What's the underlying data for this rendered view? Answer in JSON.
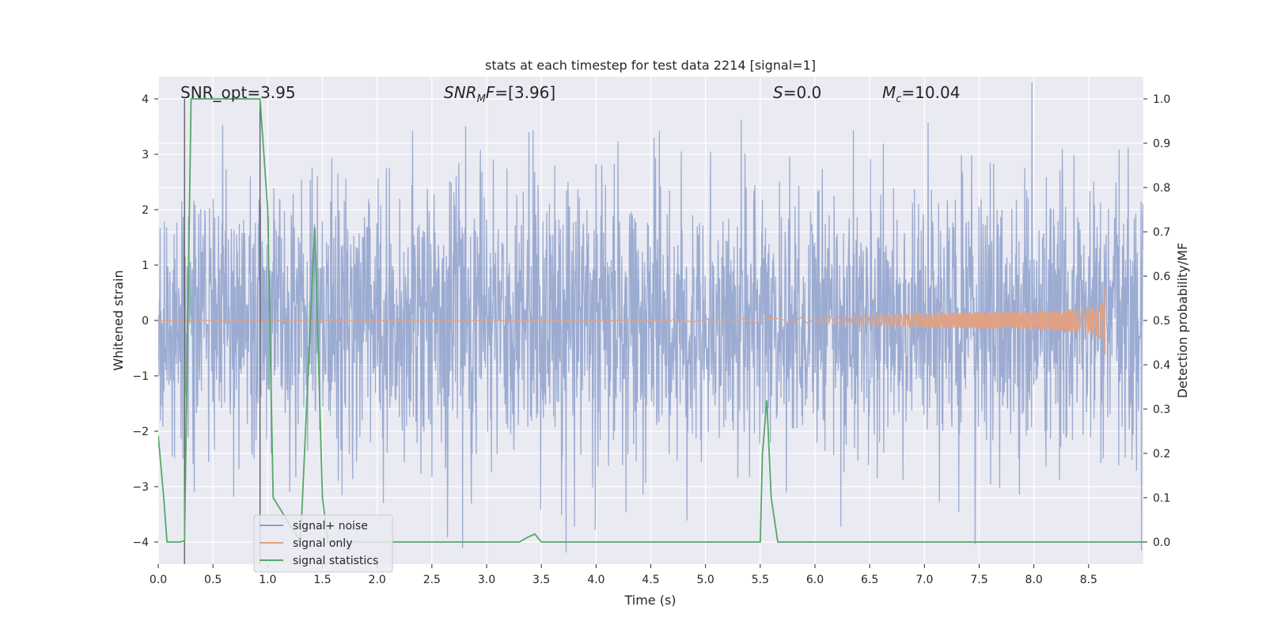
{
  "chart_data": {
    "type": "line",
    "title": "stats at each timestep for test data 2214 [signal=1]",
    "xlabel": "Time (s)",
    "ylabel_left": "Whitened strain",
    "ylabel_right": "Detection probability/MF",
    "xlim": [
      0.0,
      9.0
    ],
    "ylim_left": [
      -4.4,
      4.4
    ],
    "ylim_right": [
      -0.05,
      1.05
    ],
    "xticks": [
      0.0,
      0.5,
      1.0,
      1.5,
      2.0,
      2.5,
      3.0,
      3.5,
      4.0,
      4.5,
      5.0,
      5.5,
      6.0,
      6.5,
      7.0,
      7.5,
      8.0,
      8.5
    ],
    "xtick_labels": [
      "0.0",
      "0.5",
      "1.0",
      "1.5",
      "2.0",
      "2.5",
      "3.0",
      "3.5",
      "4.0",
      "4.5",
      "5.0",
      "5.5",
      "6.0",
      "6.5",
      "7.0",
      "7.5",
      "8.0",
      "8.5"
    ],
    "yticks_left": [
      -4,
      -3,
      -2,
      -1,
      0,
      1,
      2,
      3,
      4
    ],
    "ytick_labels_left": [
      "−4",
      "−3",
      "−2",
      "−1",
      "0",
      "1",
      "2",
      "3",
      "4"
    ],
    "yticks_right": [
      0.0,
      0.1,
      0.2,
      0.3,
      0.4,
      0.5,
      0.6,
      0.7,
      0.8,
      0.9,
      1.0
    ],
    "ytick_labels_right": [
      "0.0",
      "0.1",
      "0.2",
      "0.3",
      "0.4",
      "0.5",
      "0.6",
      "0.7",
      "0.8",
      "0.9",
      "1.0"
    ],
    "annotations": {
      "snr_opt": {
        "name": "SNR_opt",
        "value": "=3.95"
      },
      "snr_mf": {
        "name": "SNR",
        "sub": "M",
        "suffix": "F",
        "value": "=[3.96]"
      },
      "s_stat": {
        "name": "S",
        "value": "=0.0"
      },
      "mc": {
        "name": "M",
        "sub": "c",
        "value": "=10.04"
      }
    },
    "series": [
      {
        "name": "signal+ noise",
        "color": "#8da0cb",
        "axis": "left",
        "style": "noise",
        "sigma": 1.0,
        "x_range": [
          0.0,
          9.0
        ]
      },
      {
        "name": "signal only",
        "color": "#e1a184",
        "axis": "left",
        "style": "chirp",
        "x_range": [
          0.0,
          8.65
        ],
        "peak_amplitude": 0.62,
        "merger_time": 8.65
      },
      {
        "name": "signal statistics",
        "color": "#55a868",
        "axis": "right",
        "x": [
          0.0,
          0.05,
          0.08,
          0.15,
          0.2,
          0.24,
          0.3,
          0.93,
          1.0,
          1.05,
          1.3,
          1.4,
          1.43,
          1.5,
          1.55,
          2.0,
          3.3,
          3.37,
          3.44,
          3.5,
          3.6,
          4.0,
          5.0,
          5.5,
          5.52,
          5.56,
          5.6,
          5.66,
          6.0,
          7.5,
          8.0,
          9.0
        ],
        "y": [
          0.24,
          0.1,
          0.0,
          0.0,
          0.0,
          0.003,
          1.0,
          1.0,
          0.75,
          0.1,
          0.0,
          0.55,
          0.71,
          0.1,
          0.0,
          0.0,
          0.0,
          0.01,
          0.018,
          0.0,
          0.0,
          0.0,
          0.0,
          0.0,
          0.2,
          0.32,
          0.1,
          0.0,
          0.0,
          0.0,
          0.0,
          0.0
        ]
      }
    ],
    "vertical_lines": [
      {
        "x": 0.24,
        "color": "#4c4c4c"
      },
      {
        "x": 0.93,
        "color": "#4c4c4c"
      }
    ],
    "legend": {
      "placement": "lower-left",
      "entries": [
        "signal+ noise",
        "signal only",
        "signal statistics"
      ]
    },
    "grid": true,
    "background": "#eaeaf2"
  }
}
